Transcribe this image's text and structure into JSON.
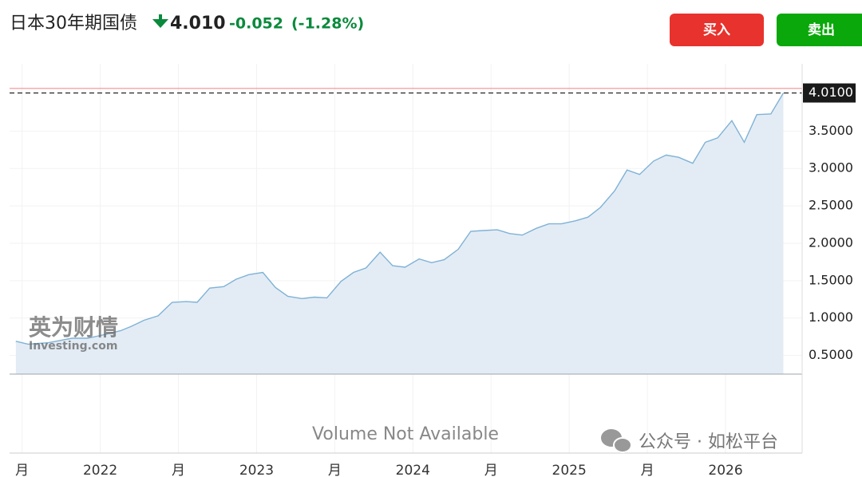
{
  "header": {
    "title": "日本30年期国债",
    "price": "4.010",
    "change": "-0.052",
    "change_pct": "(-1.28%)",
    "buy": "买入",
    "sell": "卖出"
  },
  "watermark": {
    "logo_cn": "英为财情",
    "logo_en": "Investing.com",
    "account": "公众号 · 如松平台"
  },
  "chart_data": {
    "type": "area",
    "annotation": "Volume Not Available",
    "x": [
      2021.46,
      2021.54,
      2021.67,
      2021.82,
      2021.92,
      2022.03,
      2022.13,
      2022.2,
      2022.28,
      2022.37,
      2022.46,
      2022.55,
      2022.62,
      2022.7,
      2022.79,
      2022.87,
      2022.95,
      2023.04,
      2023.12,
      2023.2,
      2023.29,
      2023.37,
      2023.45,
      2023.54,
      2023.62,
      2023.7,
      2023.79,
      2023.87,
      2023.95,
      2024.04,
      2024.12,
      2024.2,
      2024.29,
      2024.37,
      2024.45,
      2024.54,
      2024.62,
      2024.7,
      2024.79,
      2024.87,
      2024.95,
      2025.04,
      2025.12,
      2025.2,
      2025.29,
      2025.37,
      2025.45,
      2025.54,
      2025.62,
      2025.7,
      2025.79,
      2025.87,
      2025.95,
      2026.04,
      2026.12,
      2026.2,
      2026.29,
      2026.37
    ],
    "series": [
      {
        "color": "#7fb2d6",
        "values": [
          0.69,
          0.65,
          0.67,
          0.73,
          0.73,
          0.78,
          0.83,
          0.89,
          0.97,
          1.03,
          1.21,
          1.22,
          1.21,
          1.4,
          1.42,
          1.52,
          1.58,
          1.61,
          1.41,
          1.29,
          1.26,
          1.28,
          1.27,
          1.49,
          1.61,
          1.67,
          1.88,
          1.7,
          1.68,
          1.79,
          1.74,
          1.78,
          1.92,
          2.16,
          2.17,
          2.18,
          2.13,
          2.11,
          2.2,
          2.26,
          2.26,
          2.3,
          2.35,
          2.48,
          2.7,
          2.98,
          2.92,
          3.1,
          3.18,
          3.15,
          3.07,
          3.35,
          3.41,
          3.64,
          3.35,
          3.72,
          3.73,
          4.01
        ]
      }
    ],
    "xlim": [
      2021.42,
      2026.49
    ],
    "xticks": [
      {
        "value": 2021.5,
        "label": "月"
      },
      2022,
      {
        "value": 2022.5,
        "label": "月"
      },
      2023,
      {
        "value": 2023.5,
        "label": "月"
      },
      2024,
      {
        "value": 2024.5,
        "label": "月"
      },
      2025,
      {
        "value": 2025.5,
        "label": "月"
      },
      2026
    ],
    "ylim": [
      0.25,
      4.4
    ],
    "yticks": [
      {
        "value": 0.5,
        "label": "0.5000"
      },
      {
        "value": 1,
        "label": "1.0000"
      },
      {
        "value": 1.5,
        "label": "1.5000"
      },
      {
        "value": 2,
        "label": "2.0000"
      },
      {
        "value": 2.5,
        "label": "2.5000"
      },
      {
        "value": 3,
        "label": "3.0000"
      },
      {
        "value": 3.5,
        "label": "3.5000"
      }
    ],
    "last_price": {
      "value": 4.01,
      "label": "4.0100"
    },
    "reference_line": {
      "value": 4.07,
      "color": "#f08080"
    },
    "grid": true
  }
}
